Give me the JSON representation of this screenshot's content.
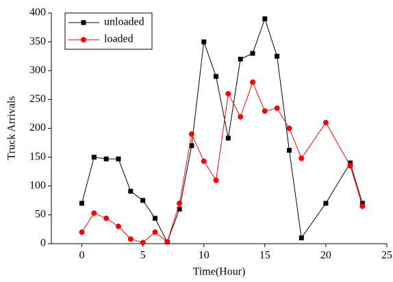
{
  "chart_data": {
    "type": "line",
    "x_label": "Time(Hour)",
    "y_label": "Truck Arrivals",
    "x": [
      0,
      1,
      2,
      3,
      4,
      5,
      6,
      7,
      8,
      9,
      10,
      11,
      12,
      13,
      14,
      15,
      16,
      17,
      18,
      20,
      22,
      23
    ],
    "series": [
      {
        "name": "unloaded",
        "color": "#000000",
        "marker": "square",
        "values": [
          70,
          150,
          147,
          147,
          91,
          75,
          44,
          3,
          60,
          170,
          350,
          290,
          183,
          320,
          330,
          390,
          325,
          162,
          10,
          70,
          140,
          70
        ]
      },
      {
        "name": "loaded",
        "color": "#ff0000",
        "marker": "circle",
        "values": [
          20,
          53,
          44,
          30,
          8,
          2,
          20,
          3,
          70,
          190,
          143,
          110,
          260,
          220,
          280,
          230,
          235,
          200,
          148,
          210,
          135,
          65
        ]
      }
    ],
    "xlim": [
      -2.5,
      25
    ],
    "xticks": [
      0,
      5,
      10,
      15,
      20,
      25
    ],
    "ylim": [
      0,
      400
    ],
    "yticks": [
      0,
      50,
      100,
      150,
      200,
      250,
      300,
      350,
      400
    ],
    "legend": "upper-left"
  }
}
